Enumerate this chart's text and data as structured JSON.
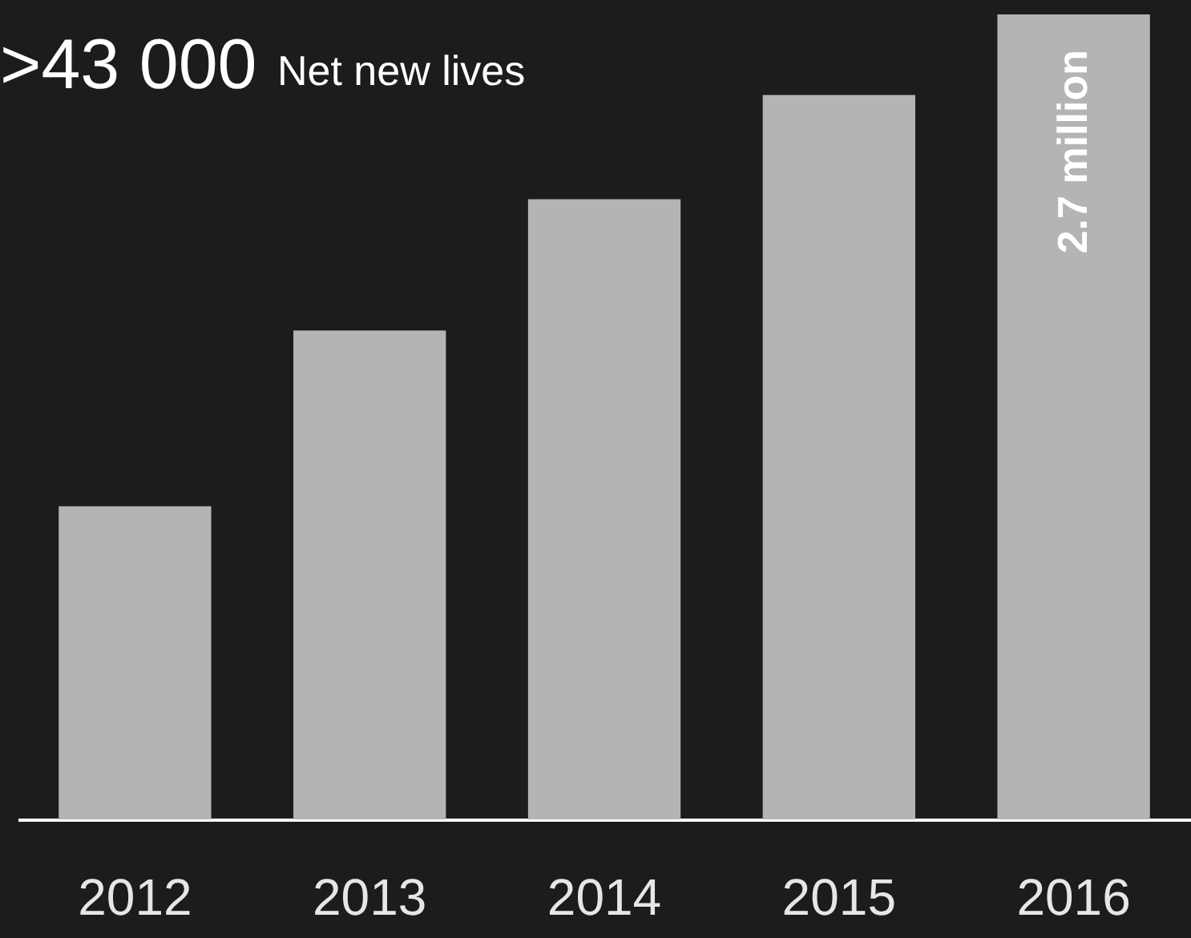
{
  "chart_data": {
    "type": "bar",
    "title": ">43 000",
    "subtitle": "Net new lives",
    "categories": [
      "2012",
      "2013",
      "2014",
      "2015",
      "2016"
    ],
    "values": [
      1.05,
      1.64,
      2.08,
      2.43,
      2.7
    ],
    "color": "#b4b4b4",
    "ylim": [
      0,
      2.7
    ],
    "tick_labels": "x",
    "value_labels": [
      null,
      null,
      null,
      null,
      "2.7 million"
    ]
  }
}
